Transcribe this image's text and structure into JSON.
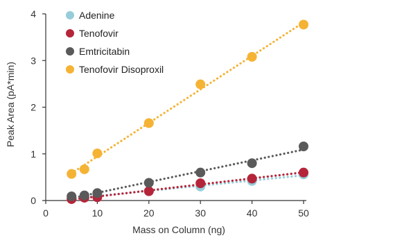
{
  "chart_data": {
    "type": "scatter",
    "xlabel": "Mass on Column (ng)",
    "ylabel": "Peak Area (pA*min)",
    "xlim": [
      0,
      50
    ],
    "ylim": [
      0,
      4
    ],
    "xticks": [
      "0",
      "10",
      "20",
      "30",
      "40",
      "50"
    ],
    "yticks": [
      "0",
      "1",
      "2",
      "3",
      "4"
    ],
    "grid": false,
    "legend_position": "top-left",
    "trendlines": "dotted linear fit per series",
    "series": [
      {
        "name": "Adenine",
        "color": "#96cdd9",
        "x": [
          5,
          7.5,
          10,
          20,
          30,
          40,
          50
        ],
        "y": [
          0.05,
          0.07,
          0.1,
          0.2,
          0.3,
          0.42,
          0.56
        ]
      },
      {
        "name": "Tenofovir",
        "color": "#b5253a",
        "x": [
          5,
          7.5,
          10,
          20,
          30,
          40,
          50
        ],
        "y": [
          0.03,
          0.06,
          0.07,
          0.2,
          0.37,
          0.47,
          0.6
        ]
      },
      {
        "name": "Emtricitabin",
        "color": "#5a5a5a",
        "x": [
          5,
          7.5,
          10,
          20,
          30,
          40,
          50
        ],
        "y": [
          0.09,
          0.11,
          0.16,
          0.38,
          0.6,
          0.8,
          1.16
        ]
      },
      {
        "name": "Tenofovir Disoproxil",
        "color": "#f5b335",
        "x": [
          5,
          7.5,
          10,
          20,
          30,
          40,
          50
        ],
        "y": [
          0.57,
          0.67,
          1.01,
          1.66,
          2.49,
          3.08,
          3.77
        ]
      }
    ]
  }
}
